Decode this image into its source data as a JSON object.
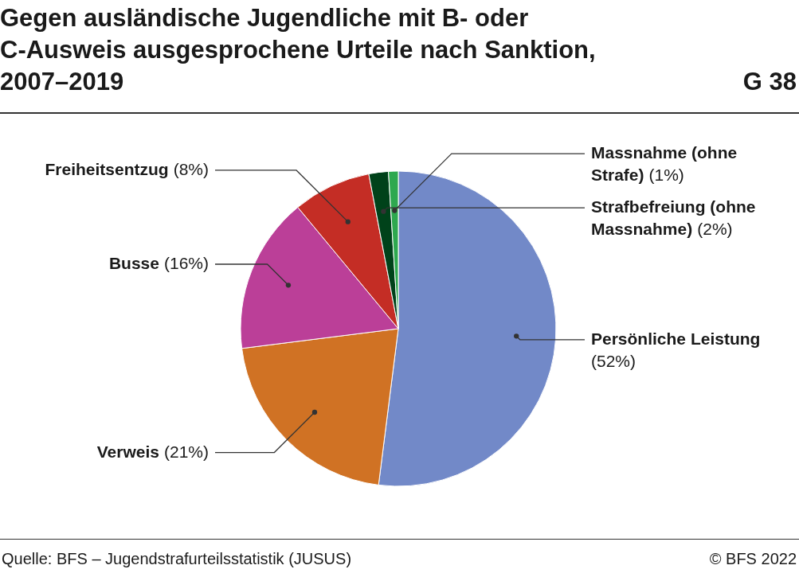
{
  "chart_data": {
    "type": "pie",
    "title": "Gegen ausländische Jugendliche mit B- oder C-Ausweis ausgesprochene Urteile nach Sanktion, 2007–2019",
    "categories": [
      "Persönliche Leistung",
      "Verweis",
      "Busse",
      "Freiheitsentzug",
      "Strafbefreiung (ohne Massnahme)",
      "Massnahme (ohne Strafe)"
    ],
    "values": [
      52,
      21,
      16,
      8,
      2,
      1
    ],
    "colors": [
      "#7289c8",
      "#d07224",
      "#bb3f98",
      "#c42d25",
      "#00421a",
      "#2ea84f"
    ],
    "value_labels": [
      "(52%)",
      "(21%)",
      "(16%)",
      "(8%)",
      "(2%)",
      "(1%)"
    ],
    "annotations": [
      "G 38",
      "Quelle: BFS – Jugendstrafurteilsstatistik (JUSUS)",
      "© BFS 2022"
    ]
  }
}
